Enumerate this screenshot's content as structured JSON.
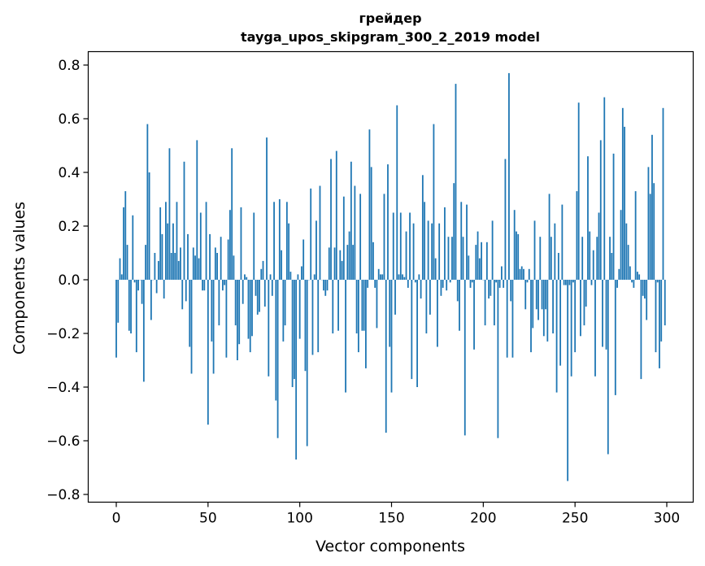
{
  "chart_data": {
    "type": "bar",
    "title_line1": "грейдер",
    "title_line2": "tayga_upos_skipgram_300_2_2019 model",
    "xlabel": "Vector components",
    "ylabel": "Components values",
    "xlim": [
      -15,
      315
    ],
    "ylim": [
      -0.83,
      0.85
    ],
    "xticks": [
      0,
      50,
      100,
      150,
      200,
      250,
      300
    ],
    "xtick_labels": [
      "0",
      "50",
      "100",
      "150",
      "200",
      "250",
      "300"
    ],
    "yticks": [
      -0.8,
      -0.6,
      -0.4,
      -0.2,
      0.0,
      0.2,
      0.4,
      0.6,
      0.8
    ],
    "ytick_labels": [
      "−0.8",
      "−0.6",
      "−0.4",
      "−0.2",
      "0.0",
      "0.2",
      "0.4",
      "0.6",
      "0.8"
    ],
    "grid": false,
    "color": "#1f77b4",
    "values": [
      -0.29,
      -0.16,
      0.08,
      0.02,
      0.27,
      0.33,
      0.13,
      -0.19,
      -0.2,
      0.24,
      -0.01,
      -0.27,
      -0.04,
      0.0,
      -0.09,
      -0.38,
      0.13,
      0.58,
      0.4,
      -0.15,
      0.0,
      0.1,
      -0.05,
      0.07,
      0.27,
      0.17,
      -0.07,
      0.29,
      0.21,
      0.49,
      0.1,
      0.21,
      0.1,
      0.29,
      0.07,
      0.12,
      -0.11,
      0.44,
      -0.08,
      0.17,
      -0.25,
      -0.35,
      0.12,
      0.09,
      0.52,
      0.08,
      0.25,
      -0.04,
      -0.04,
      0.29,
      -0.54,
      0.17,
      -0.23,
      -0.35,
      0.12,
      0.1,
      -0.17,
      0.16,
      -0.04,
      -0.02,
      -0.29,
      0.15,
      0.26,
      0.49,
      0.09,
      -0.17,
      -0.3,
      -0.24,
      0.27,
      -0.09,
      0.02,
      0.01,
      -0.22,
      -0.27,
      -0.21,
      0.25,
      -0.06,
      -0.13,
      -0.12,
      0.04,
      0.07,
      -0.1,
      0.53,
      -0.36,
      0.02,
      -0.06,
      0.29,
      -0.45,
      -0.59,
      0.3,
      0.11,
      -0.23,
      -0.17,
      0.29,
      0.21,
      0.03,
      -0.4,
      -0.37,
      -0.67,
      0.02,
      -0.22,
      0.05,
      0.15,
      -0.34,
      -0.62,
      0.0,
      0.34,
      -0.28,
      0.02,
      0.22,
      -0.27,
      0.35,
      0.0,
      -0.04,
      -0.06,
      -0.04,
      0.12,
      0.45,
      -0.2,
      0.12,
      0.48,
      -0.19,
      0.11,
      0.07,
      0.31,
      -0.42,
      0.13,
      0.18,
      0.44,
      0.13,
      0.35,
      -0.2,
      -0.27,
      0.32,
      -0.19,
      -0.19,
      -0.33,
      -0.03,
      0.56,
      0.42,
      0.14,
      -0.03,
      -0.18,
      0.04,
      0.02,
      0.02,
      0.32,
      -0.57,
      0.43,
      -0.25,
      -0.42,
      0.25,
      -0.13,
      0.65,
      0.02,
      0.25,
      0.02,
      0.01,
      0.18,
      -0.03,
      0.25,
      -0.37,
      0.21,
      -0.01,
      -0.4,
      0.02,
      -0.07,
      0.39,
      0.29,
      -0.2,
      0.22,
      -0.13,
      0.21,
      0.58,
      0.08,
      -0.25,
      0.21,
      -0.06,
      -0.03,
      0.27,
      -0.04,
      0.16,
      -0.01,
      0.16,
      0.36,
      0.73,
      -0.08,
      -0.19,
      0.29,
      0.16,
      -0.58,
      0.28,
      0.09,
      -0.03,
      -0.01,
      -0.26,
      0.13,
      0.18,
      0.08,
      0.14,
      0.0,
      -0.17,
      0.14,
      -0.07,
      -0.06,
      0.22,
      -0.17,
      -0.01,
      -0.59,
      -0.03,
      0.05,
      -0.03,
      0.45,
      -0.29,
      0.77,
      -0.08,
      -0.29,
      0.26,
      0.18,
      0.17,
      0.04,
      0.05,
      0.04,
      -0.11,
      -0.01,
      0.04,
      -0.27,
      -0.18,
      0.22,
      -0.11,
      -0.15,
      0.16,
      -0.11,
      -0.21,
      -0.11,
      -0.23,
      0.32,
      0.16,
      -0.2,
      0.21,
      -0.42,
      0.1,
      -0.32,
      0.28,
      -0.02,
      -0.02,
      -0.75,
      -0.02,
      -0.36,
      -0.01,
      -0.27,
      0.33,
      0.66,
      -0.21,
      0.16,
      -0.17,
      -0.1,
      0.46,
      0.18,
      -0.02,
      0.11,
      -0.36,
      0.16,
      0.25,
      0.52,
      -0.25,
      0.68,
      -0.26,
      -0.65,
      0.16,
      0.1,
      0.47,
      -0.43,
      -0.03,
      0.04,
      0.26,
      0.64,
      0.57,
      0.21,
      0.13,
      0.05,
      -0.01,
      -0.03,
      0.33,
      0.03,
      0.02,
      -0.37,
      -0.06,
      -0.07,
      -0.15,
      0.42,
      0.32,
      0.54,
      0.36,
      -0.27,
      -0.01,
      -0.33,
      -0.23,
      0.64,
      -0.17
    ]
  }
}
